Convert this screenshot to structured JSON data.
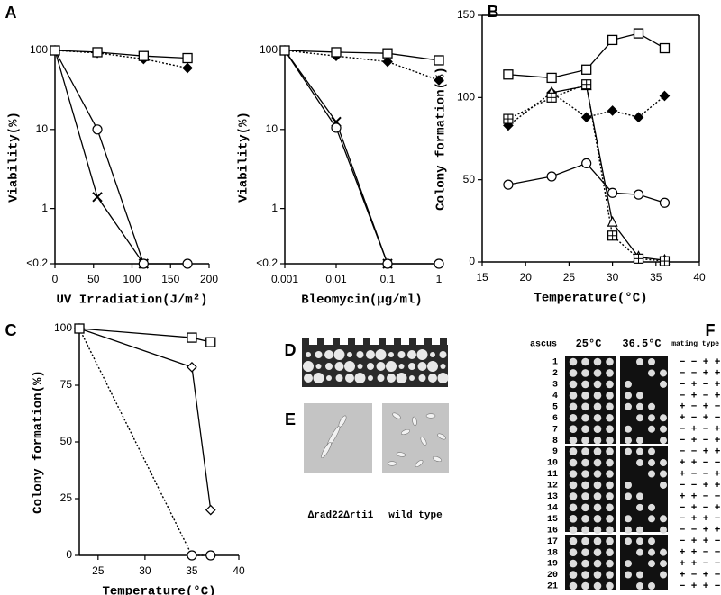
{
  "panel_labels": [
    "A",
    "B",
    "C",
    "D",
    "E",
    "F"
  ],
  "chart_data": [
    {
      "type": "line",
      "xlabel": "UV Irradiation(J/m²)",
      "ylabel": "Viability(%)",
      "x": [
        0,
        55,
        115,
        172
      ],
      "xlim": [
        0,
        200
      ],
      "xticks": [
        0,
        50,
        100,
        150,
        200
      ],
      "ylim": [
        0.2,
        100
      ],
      "yticks": [
        100,
        10,
        1,
        {
          "value": 0.2,
          "label": "<0.2"
        }
      ],
      "yscale": "log",
      "series": [
        {
          "marker": "x",
          "line": "solid",
          "color": "#000000",
          "marker_fill": "#000000",
          "values": [
            100,
            1.4,
            0.2,
            null
          ]
        },
        {
          "marker": "circle",
          "line": "solid",
          "color": "#000000",
          "marker_fill": "#ffffff",
          "values": [
            100,
            10,
            0.2,
            0.2
          ]
        },
        {
          "marker": "diamond",
          "line": "dotted",
          "color": "#000000",
          "marker_fill": "#000000",
          "values": [
            100,
            93,
            78,
            60
          ]
        },
        {
          "marker": "square",
          "line": "solid",
          "color": "#000000",
          "marker_fill": "#ffffff",
          "values": [
            100,
            95,
            85,
            80
          ]
        }
      ]
    },
    {
      "type": "line",
      "xlabel": "Bleomycin(μg/ml)",
      "ylabel": "Viability(%)",
      "x": [
        0.001,
        0.01,
        0.1,
        1
      ],
      "xlim": [
        0.001,
        1
      ],
      "xticks": [
        0.001,
        0.01,
        0.1,
        1
      ],
      "xscale": "log",
      "ylim": [
        0.2,
        100
      ],
      "yticks": [
        100,
        10,
        1,
        {
          "value": 0.2,
          "label": "<0.2"
        }
      ],
      "yscale": "log",
      "series": [
        {
          "marker": "x",
          "line": "solid",
          "color": "#000000",
          "marker_fill": "#000000",
          "values": [
            100,
            12.5,
            0.2,
            null
          ]
        },
        {
          "marker": "circle",
          "line": "solid",
          "color": "#000000",
          "marker_fill": "#ffffff",
          "values": [
            100,
            10.5,
            0.2,
            0.2
          ]
        },
        {
          "marker": "diamond",
          "line": "dotted",
          "color": "#000000",
          "marker_fill": "#000000",
          "values": [
            100,
            85,
            72,
            42
          ]
        },
        {
          "marker": "square",
          "line": "solid",
          "color": "#000000",
          "marker_fill": "#ffffff",
          "values": [
            100,
            95,
            92,
            75
          ]
        }
      ]
    },
    {
      "type": "line",
      "xlabel": "Temperature(°C)",
      "ylabel": "Colony formation(%)",
      "frame": true,
      "x": [
        18,
        23,
        27,
        30,
        33,
        36
      ],
      "xlim": [
        15,
        40
      ],
      "xticks": [
        15,
        20,
        25,
        30,
        35,
        40
      ],
      "ylim": [
        0,
        150
      ],
      "yticks": [
        0,
        50,
        100,
        150
      ],
      "series": [
        {
          "marker": "circle",
          "line": "solid",
          "color": "#000000",
          "marker_fill": "#ffffff",
          "values": [
            47,
            52,
            60,
            42,
            41,
            36
          ]
        },
        {
          "marker": "diamond",
          "line": "dotted",
          "color": "#000000",
          "marker_fill": "#000000",
          "values": [
            83,
            103,
            88,
            92,
            88,
            101
          ]
        },
        {
          "marker": "triangle",
          "line": "solid",
          "color": "#000000",
          "marker_fill": "#ffffff",
          "values": [
            null,
            103,
            107,
            24,
            3,
            1
          ]
        },
        {
          "marker": "boxplus",
          "line": "dotted",
          "color": "#000000",
          "marker_fill": "#ffffff",
          "values": [
            87,
            100,
            108,
            16,
            2,
            0.5
          ]
        },
        {
          "marker": "square",
          "line": "solid",
          "color": "#000000",
          "marker_fill": "#ffffff",
          "values": [
            114,
            112,
            117,
            135,
            139,
            130
          ]
        }
      ]
    },
    {
      "type": "line",
      "xlabel": "Temperature(°C)",
      "ylabel": "Colony formation(%)",
      "x": [
        23,
        35,
        37
      ],
      "xlim": [
        23,
        40
      ],
      "xticks": [
        25,
        30,
        35,
        40
      ],
      "ylim": [
        0,
        100
      ],
      "yticks": [
        0,
        25,
        50,
        75,
        100
      ],
      "series": [
        {
          "marker": "circle",
          "line": "dotted",
          "color": "#000000",
          "marker_fill": "#ffffff",
          "values": [
            100,
            0,
            0
          ]
        },
        {
          "marker": "diamond",
          "line": "solid",
          "color": "#000000",
          "marker_fill": "#ffffff",
          "values": [
            100,
            83,
            20
          ]
        },
        {
          "marker": "square",
          "line": "solid",
          "color": "#000000",
          "marker_fill": "#ffffff",
          "values": [
            100,
            96,
            94
          ]
        }
      ]
    }
  ],
  "panel_e": {
    "captions": [
      "Δrad22Δrti1",
      "wild type"
    ]
  },
  "panel_f": {
    "header": [
      "ascus",
      "25°C",
      "36.5°C",
      "mating type"
    ],
    "rows": [
      {
        "ascus": "1",
        "mating_type": [
          "−",
          "−",
          "+",
          "+"
        ]
      },
      {
        "ascus": "2",
        "mating_type": [
          "−",
          "−",
          "+",
          "+"
        ]
      },
      {
        "ascus": "3",
        "mating_type": [
          "−",
          "+",
          "−",
          "+"
        ]
      },
      {
        "ascus": "4",
        "mating_type": [
          "−",
          "+",
          "−",
          "+"
        ]
      },
      {
        "ascus": "5",
        "mating_type": [
          "+",
          "−",
          "+",
          "−"
        ]
      },
      {
        "ascus": "6",
        "mating_type": [
          "+",
          "−",
          "+",
          "−"
        ]
      },
      {
        "ascus": "7",
        "mating_type": [
          "−",
          "+",
          "−",
          "+"
        ]
      },
      {
        "ascus": "8",
        "mating_type": [
          "−",
          "+",
          "−",
          "+"
        ]
      },
      {
        "ascus": "9",
        "mating_type": [
          "−",
          "−",
          "+",
          "+"
        ]
      },
      {
        "ascus": "10",
        "mating_type": [
          "+",
          "+",
          "−",
          "−"
        ]
      },
      {
        "ascus": "11",
        "mating_type": [
          "+",
          "−",
          "−",
          "+"
        ]
      },
      {
        "ascus": "12",
        "mating_type": [
          "−",
          "−",
          "+",
          "+"
        ]
      },
      {
        "ascus": "13",
        "mating_type": [
          "+",
          "+",
          "−",
          "−"
        ]
      },
      {
        "ascus": "14",
        "mating_type": [
          "−",
          "+",
          "−",
          "+"
        ]
      },
      {
        "ascus": "15",
        "mating_type": [
          "−",
          "+",
          "+",
          "−"
        ]
      },
      {
        "ascus": "16",
        "mating_type": [
          "−",
          "−",
          "+",
          "+"
        ]
      },
      {
        "ascus": "17",
        "mating_type": [
          "−",
          "+",
          "+",
          "−"
        ]
      },
      {
        "ascus": "18",
        "mating_type": [
          "+",
          "+",
          "−",
          "−"
        ]
      },
      {
        "ascus": "19",
        "mating_type": [
          "+",
          "+",
          "−",
          "−"
        ]
      },
      {
        "ascus": "20",
        "mating_type": [
          "+",
          "−",
          "+",
          "−"
        ]
      },
      {
        "ascus": "21",
        "mating_type": [
          "−",
          "+",
          "+",
          "−"
        ]
      }
    ]
  }
}
